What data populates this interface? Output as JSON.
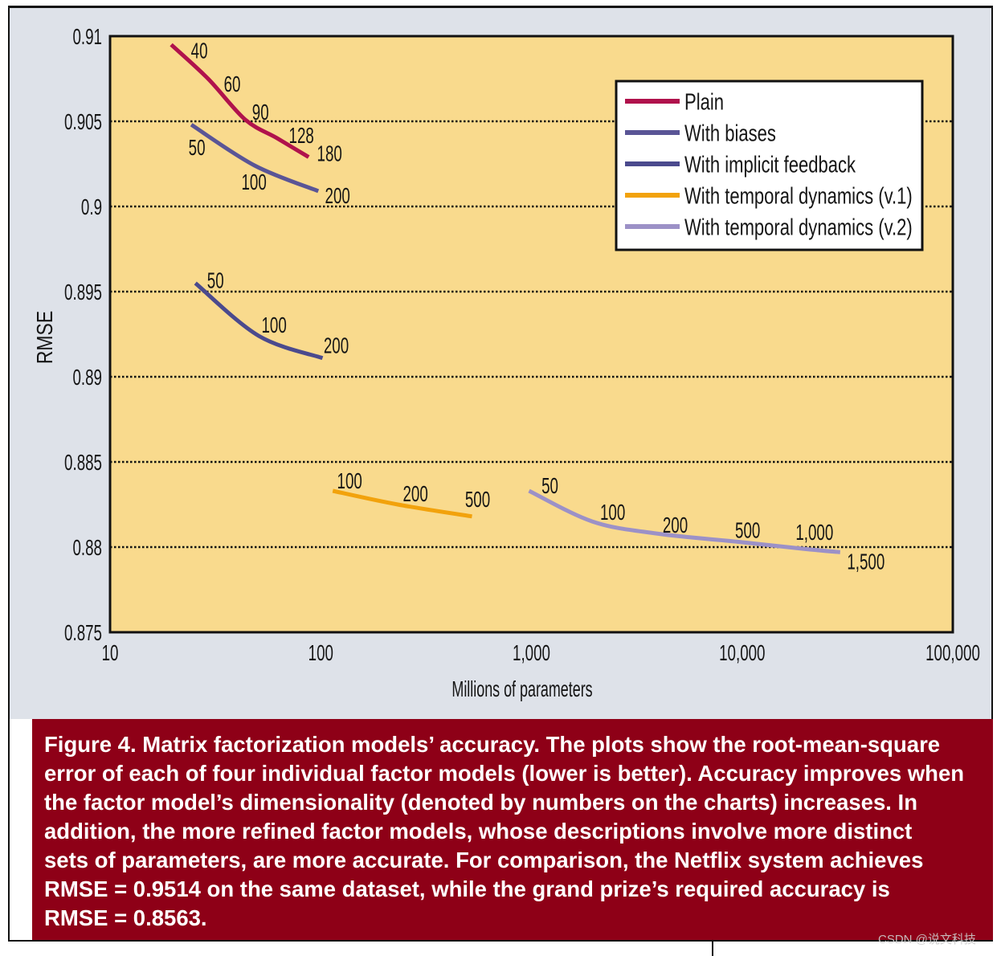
{
  "colors": {
    "panel_bg": "#dee2e9",
    "plot_bg": "#f9da8d",
    "caption_bg": "#8e0017",
    "caption_text": "#ffffff"
  },
  "figure": {
    "caption": {
      "label": "Figure 4.",
      "lines": [
        "Matrix factorization models’ accuracy. The plots show the root-mean-square",
        "error of each of four individual factor models (lower is better). Accuracy improves when",
        "the factor model’s dimensionality (denoted by numbers on the charts) increases. In",
        "addition, the more refined factor models, whose descriptions involve more distinct",
        "sets of parameters, are more accurate. For comparison, the Netflix system achieves",
        "RMSE = 0.9514 on the same dataset, while the grand prize’s required accuracy is",
        "RMSE = 0.8563."
      ]
    },
    "watermark": "CSDN @说文科技"
  },
  "chart_data": {
    "type": "line",
    "xlabel": "Millions of parameters",
    "ylabel": "RMSE",
    "xscale": "log",
    "xlim": [
      10,
      100000
    ],
    "ylim": [
      0.875,
      0.91
    ],
    "xticks": [
      10,
      100,
      1000,
      10000,
      100000
    ],
    "xtick_labels": [
      "10",
      "100",
      "1,000",
      "10,000",
      "100,000"
    ],
    "yticks": [
      0.875,
      0.88,
      0.885,
      0.89,
      0.895,
      0.9,
      0.905,
      0.91
    ],
    "ytick_labels": [
      "0.875",
      "0.88",
      "0.885",
      "0.89",
      "0.895",
      "0.9",
      "0.905",
      "0.91"
    ],
    "grid": true,
    "legend_position": "top-right",
    "series": [
      {
        "name": "Plain",
        "color": "#b0124c",
        "points": [
          {
            "x": 19.5,
            "y": 0.9095,
            "label": "40"
          },
          {
            "x": 29.2,
            "y": 0.9075,
            "label": "60"
          },
          {
            "x": 43.8,
            "y": 0.9051,
            "label": "90"
          },
          {
            "x": 62.2,
            "y": 0.904,
            "label": "128"
          },
          {
            "x": 87.6,
            "y": 0.9029,
            "label": "180"
          }
        ]
      },
      {
        "name": "With biases",
        "color": "#5a5596",
        "points": [
          {
            "x": 24.3,
            "y": 0.9048,
            "label": "50"
          },
          {
            "x": 48.6,
            "y": 0.9024,
            "label": "100"
          },
          {
            "x": 97.4,
            "y": 0.9009,
            "label": "200"
          }
        ]
      },
      {
        "name": "With implicit feedback",
        "color": "#4b4a8d",
        "points": [
          {
            "x": 25.4,
            "y": 0.8955,
            "label": "50"
          },
          {
            "x": 50.8,
            "y": 0.8924,
            "label": "100"
          },
          {
            "x": 102,
            "y": 0.8911,
            "label": "200"
          }
        ]
      },
      {
        "name": "With temporal dynamics (v.1)",
        "color": "#f2a20c",
        "points": [
          {
            "x": 114,
            "y": 0.8833,
            "label": "100"
          },
          {
            "x": 232,
            "y": 0.8825,
            "label": "200"
          },
          {
            "x": 522,
            "y": 0.8818,
            "label": "500"
          }
        ]
      },
      {
        "name": "With temporal dynamics (v.2)",
        "color": "#9c91c7",
        "points": [
          {
            "x": 974,
            "y": 0.8833,
            "label": "50"
          },
          {
            "x": 1950,
            "y": 0.8815,
            "label": "100"
          },
          {
            "x": 3900,
            "y": 0.8808,
            "label": "200"
          },
          {
            "x": 9740,
            "y": 0.8803,
            "label": "500"
          },
          {
            "x": 19500,
            "y": 0.8799,
            "label": "1,000"
          },
          {
            "x": 29200,
            "y": 0.8797,
            "label": "1,500"
          }
        ]
      }
    ]
  }
}
